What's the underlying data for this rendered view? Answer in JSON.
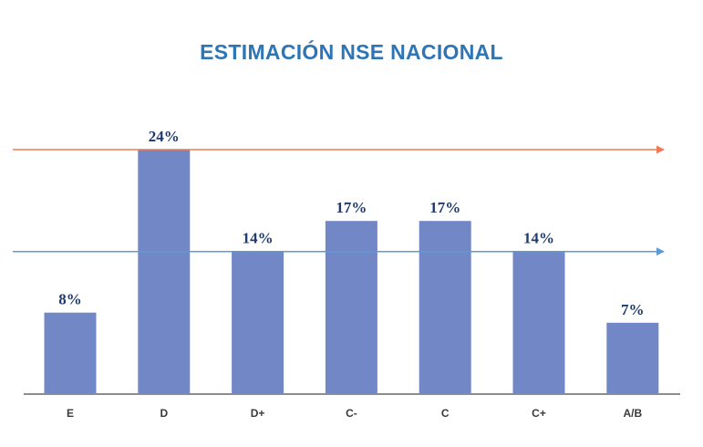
{
  "colors": {
    "title": "#2E75B6",
    "bar": "#7288C6",
    "bar_label": "#1F3A6E",
    "tick_label": "#3A3A3A",
    "axis": "#8C8C8C",
    "upper_line": "#F07A55",
    "lower_line": "#5B9BD5"
  },
  "chart_data": {
    "type": "bar",
    "title": "ESTIMACIÓN NSE NACIONAL",
    "xlabel": "",
    "ylabel": "",
    "categories": [
      "E",
      "D",
      "D+",
      "C-",
      "C",
      "C+",
      "A/B"
    ],
    "values": [
      8,
      24,
      14,
      17,
      17,
      14,
      7
    ],
    "data_labels": [
      "8%",
      "24%",
      "14%",
      "17%",
      "17%",
      "14%",
      "7%"
    ],
    "ylim": [
      0,
      24
    ],
    "grid": false,
    "legend": "none",
    "reference_lines": [
      {
        "value": 24,
        "style": "arrow"
      },
      {
        "value": 14,
        "style": "arrow"
      }
    ]
  }
}
